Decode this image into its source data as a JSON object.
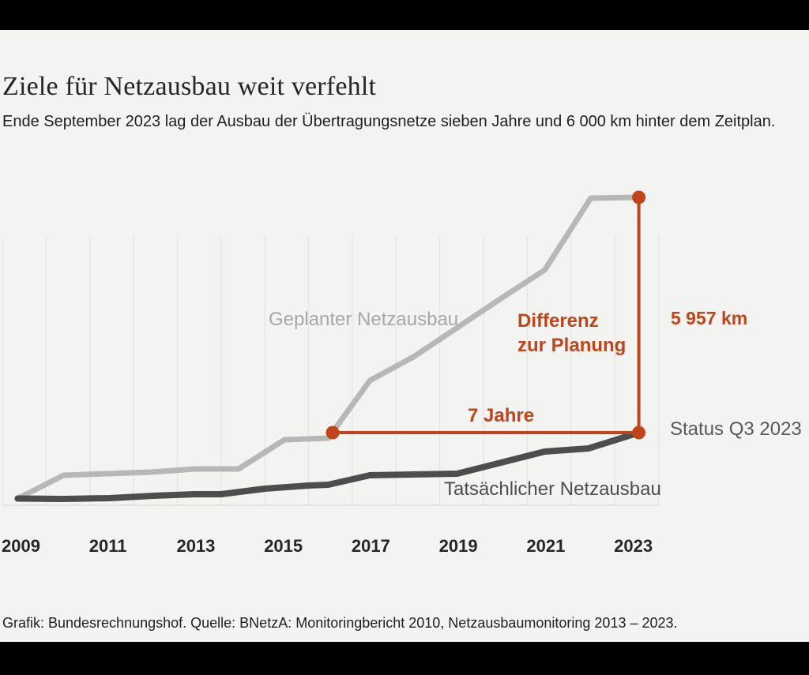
{
  "page": {
    "title": "Ziele für Netzausbau weit verfehlt",
    "subtitle": "Ende September 2023 lag der Ausbau der Übertragungsnetze sieben Jahre und 6 000 km hinter dem Zeitplan.",
    "footer": "Grafik: Bundesrechnungshof. Quelle: BNetzA: Monitoringbericht 2010, Netzausbaumonitoring 2013 – 2023."
  },
  "colors": {
    "background": "#f3f3f1",
    "frame_bars": "#000000",
    "accent_orange": "#c2441b",
    "planned_line": "#b7b7b7",
    "actual_line": "#4d4d4d",
    "planned_label": "#a8a8a8",
    "actual_label": "#4d4d4d",
    "status_label": "#595959",
    "gridline": "#e5e5e3",
    "axis_line": "#dcdcda"
  },
  "chart_data": {
    "type": "line",
    "title": "Ziele für Netzausbau weit verfehlt",
    "x_axis": {
      "range": [
        2009,
        2024
      ],
      "gridlines_every_year": true,
      "tick_years": [
        2009,
        2011,
        2013,
        2015,
        2017,
        2019,
        2021,
        2023
      ],
      "tick_labels": [
        "2009",
        "2011",
        "2013",
        "2015",
        "2017",
        "2019",
        "2021",
        "2023"
      ]
    },
    "y_axis": {
      "visible": false,
      "unit": "km",
      "range": [
        0,
        7630
      ]
    },
    "labels": {
      "planned": "Geplanter Netzausbau",
      "actual": "Tatsächlicher Netzausbau"
    },
    "series": [
      {
        "name": "Geplanter Netzausbau",
        "key": "planned",
        "points": [
          [
            2009.35,
            0
          ],
          [
            2010.4,
            590
          ],
          [
            2011.4,
            630
          ],
          [
            2012.4,
            670
          ],
          [
            2013.4,
            750
          ],
          [
            2014.4,
            750
          ],
          [
            2015.45,
            1490
          ],
          [
            2016.45,
            1530
          ],
          [
            2017.4,
            2990
          ],
          [
            2018.4,
            3590
          ],
          [
            2019.4,
            4330
          ],
          [
            2020.4,
            5070
          ],
          [
            2021.4,
            5790
          ],
          [
            2022.45,
            7610
          ],
          [
            2023.55,
            7630
          ]
        ]
      },
      {
        "name": "Tatsächlicher Netzausbau",
        "key": "actual",
        "points": [
          [
            2009.35,
            0
          ],
          [
            2010.4,
            -10
          ],
          [
            2011.45,
            10
          ],
          [
            2012.45,
            70
          ],
          [
            2013.4,
            110
          ],
          [
            2014.0,
            110
          ],
          [
            2015.0,
            250
          ],
          [
            2016.0,
            330
          ],
          [
            2016.45,
            350
          ],
          [
            2017.4,
            590
          ],
          [
            2018.4,
            610
          ],
          [
            2019.4,
            630
          ],
          [
            2020.4,
            910
          ],
          [
            2021.4,
            1190
          ],
          [
            2022.4,
            1270
          ],
          [
            2023.55,
            1670
          ]
        ]
      }
    ],
    "annotations": {
      "difference_label": "Differenz zur Planung",
      "difference_km": "5 957 km",
      "difference_years": "7 Jahre",
      "status": "Status Q3 2023",
      "junction_point": [
        2016.55,
        1670
      ],
      "end_actual": [
        2023.55,
        1670
      ],
      "end_planned": [
        2023.55,
        7630
      ]
    }
  }
}
